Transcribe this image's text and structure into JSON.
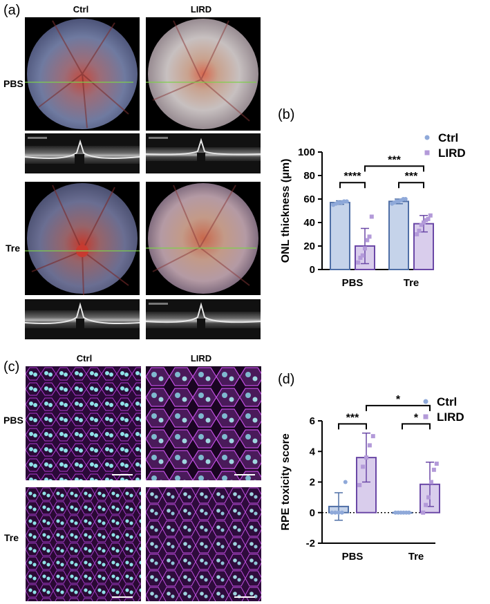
{
  "panels": {
    "a": {
      "letter": "(a)",
      "col_labels": [
        "Ctrl",
        "LIRD"
      ],
      "row_labels": [
        "PBS",
        "Tre"
      ]
    },
    "c": {
      "letter": "(c)",
      "col_labels": [
        "Ctrl",
        "LIRD"
      ],
      "row_labels": [
        "PBS",
        "Tre"
      ]
    }
  },
  "colors": {
    "ctrl_fill": "#c5d3ea",
    "ctrl_stroke": "#4f6fa6",
    "ctrl_point": "#8fa9d9",
    "lird_fill": "#d9cdec",
    "lird_stroke": "#6a47a6",
    "lird_point": "#b39ad9",
    "fundus_green_line": "#7ed04b"
  },
  "chart_data": [
    {
      "panel": "(b)",
      "type": "bar",
      "categories": [
        "PBS",
        "Tre"
      ],
      "ylabel": "ONL thickness (μm)",
      "ylim": [
        0,
        100
      ],
      "yticks": [
        0,
        20,
        40,
        60,
        80,
        100
      ],
      "legend": [
        "Ctrl",
        "LIRD"
      ],
      "legend_position": "top-right",
      "series": [
        {
          "name": "Ctrl",
          "values": [
            57,
            58
          ],
          "errors": [
            1.5,
            2
          ],
          "points": [
            [
              55,
              56,
              57,
              57,
              58,
              58
            ],
            [
              56,
              57,
              58,
              58,
              59,
              60,
              60
            ]
          ]
        },
        {
          "name": "LIRD",
          "values": [
            20,
            39
          ],
          "errors": [
            15,
            7
          ],
          "points": [
            [
              6,
              10,
              12,
              18,
              25,
              28,
              45
            ],
            [
              30,
              33,
              38,
              40,
              42,
              43,
              46
            ]
          ]
        }
      ],
      "significance": [
        {
          "label": "****",
          "between": [
            "PBS Ctrl",
            "PBS LIRD"
          ],
          "y": 74
        },
        {
          "label": "***",
          "between": [
            "Tre Ctrl",
            "Tre LIRD"
          ],
          "y": 74
        },
        {
          "label": "***",
          "between": [
            "PBS LIRD",
            "Tre LIRD"
          ],
          "y": 88
        }
      ]
    },
    {
      "panel": "(d)",
      "type": "bar",
      "categories": [
        "PBS",
        "Tre"
      ],
      "ylabel": "RPE toxicity score",
      "ylim": [
        -2,
        6
      ],
      "yticks": [
        -2,
        0,
        2,
        4,
        6
      ],
      "baseline": 0,
      "legend": [
        "Ctrl",
        "LIRD"
      ],
      "legend_position": "top-right",
      "series": [
        {
          "name": "Ctrl",
          "values": [
            0.4,
            0
          ],
          "errors": [
            0.9,
            0
          ],
          "points": [
            [
              0,
              0,
              0,
              0,
              2.0
            ],
            [
              0,
              0,
              0,
              0,
              0,
              0
            ]
          ]
        },
        {
          "name": "LIRD",
          "values": [
            3.6,
            1.85
          ],
          "errors": [
            1.6,
            1.45
          ],
          "points": [
            [
              1.8,
              3.0,
              3.6,
              4.4,
              5.0
            ],
            [
              0,
              0.5,
              1.0,
              2.0,
              2.8,
              3.2
            ]
          ]
        }
      ],
      "significance": [
        {
          "label": "***",
          "between": [
            "PBS Ctrl",
            "PBS LIRD"
          ],
          "y": 5.8
        },
        {
          "label": "*",
          "between": [
            "Tre Ctrl",
            "Tre LIRD"
          ],
          "y": 5.8
        },
        {
          "label": "*",
          "between": [
            "PBS LIRD",
            "Tre LIRD"
          ],
          "y": 7.0
        }
      ]
    }
  ]
}
